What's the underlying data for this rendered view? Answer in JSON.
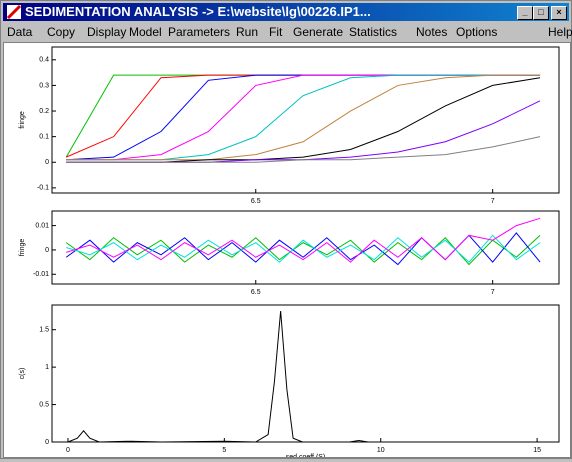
{
  "window": {
    "title": "SEDIMENTATION ANALYSIS -> E:\\website\\lg\\00226.IP1...",
    "menu": [
      "Data",
      "Copy",
      "Display",
      "Model",
      "Parameters",
      "Run",
      "Fit",
      "Generate",
      "Statistics",
      "Notes",
      "Options",
      "Help"
    ]
  },
  "chart_data": [
    {
      "type": "line",
      "ylabel": "fringe",
      "x": [
        6.1,
        6.2,
        6.3,
        6.4,
        6.5,
        6.6,
        6.7,
        6.8,
        6.9,
        7.0,
        7.1
      ],
      "series": [
        {
          "color": "#00c000",
          "values": [
            0.02,
            0.34,
            0.34,
            0.34,
            0.34,
            0.34,
            0.34,
            0.34,
            0.34,
            0.34,
            0.34
          ]
        },
        {
          "color": "#ff0000",
          "values": [
            0.02,
            0.1,
            0.33,
            0.34,
            0.34,
            0.34,
            0.34,
            0.34,
            0.34,
            0.34,
            0.34
          ]
        },
        {
          "color": "#0000ff",
          "values": [
            0.01,
            0.02,
            0.12,
            0.32,
            0.34,
            0.34,
            0.34,
            0.34,
            0.34,
            0.34,
            0.34
          ]
        },
        {
          "color": "#ff00ff",
          "values": [
            0.01,
            0.01,
            0.03,
            0.12,
            0.3,
            0.34,
            0.34,
            0.34,
            0.34,
            0.34,
            0.34
          ]
        },
        {
          "color": "#00c0c0",
          "values": [
            0.01,
            0.01,
            0.01,
            0.03,
            0.1,
            0.26,
            0.33,
            0.34,
            0.34,
            0.34,
            0.34
          ]
        },
        {
          "color": "#c08040",
          "values": [
            0.01,
            0.01,
            0.01,
            0.01,
            0.03,
            0.08,
            0.2,
            0.3,
            0.33,
            0.34,
            0.34
          ]
        },
        {
          "color": "#000000",
          "values": [
            0,
            0,
            0,
            0.01,
            0.01,
            0.02,
            0.05,
            0.12,
            0.22,
            0.3,
            0.33
          ]
        },
        {
          "color": "#8000ff",
          "values": [
            0,
            0,
            0,
            0,
            0.01,
            0.01,
            0.02,
            0.04,
            0.08,
            0.15,
            0.24
          ]
        },
        {
          "color": "#808080",
          "values": [
            0,
            0,
            0,
            0,
            0,
            0.01,
            0.01,
            0.02,
            0.03,
            0.06,
            0.1
          ]
        }
      ],
      "xlim": [
        6.07,
        7.14
      ],
      "xticks": [
        6.5,
        7
      ],
      "ylim": [
        -0.12,
        0.45
      ],
      "yticks": [
        -0.1,
        0,
        0.1,
        0.2,
        0.3,
        0.4
      ]
    },
    {
      "type": "line",
      "ylabel": "fringe",
      "x": [
        6.1,
        6.15,
        6.2,
        6.25,
        6.3,
        6.35,
        6.4,
        6.45,
        6.5,
        6.55,
        6.6,
        6.65,
        6.7,
        6.75,
        6.8,
        6.85,
        6.9,
        6.95,
        7.0,
        7.05,
        7.1
      ],
      "series": [
        {
          "color": "#00c000",
          "values": [
            0.003,
            -0.004,
            0.005,
            -0.002,
            0.004,
            -0.005,
            0.002,
            -0.003,
            0.005,
            -0.004,
            0.003,
            -0.002,
            0.004,
            -0.005,
            0.003,
            -0.004,
            0.005,
            -0.006,
            0.004,
            -0.003,
            0.006
          ]
        },
        {
          "color": "#0000ff",
          "values": [
            -0.003,
            0.004,
            -0.005,
            0.003,
            -0.002,
            0.005,
            -0.004,
            0.003,
            -0.005,
            0.004,
            -0.003,
            0.005,
            -0.004,
            0.002,
            -0.006,
            0.005,
            -0.004,
            0.006,
            -0.005,
            0.007,
            -0.005
          ]
        },
        {
          "color": "#00e0e0",
          "values": [
            0.001,
            -0.002,
            0.003,
            -0.004,
            0.002,
            -0.003,
            0.004,
            -0.002,
            0.003,
            -0.005,
            0.004,
            -0.003,
            0.002,
            -0.004,
            0.005,
            -0.003,
            0.004,
            -0.005,
            0.006,
            -0.004,
            0.003
          ]
        },
        {
          "color": "#ff00ff",
          "values": [
            -0.001,
            0.002,
            -0.003,
            0.002,
            -0.004,
            0.003,
            -0.002,
            0.004,
            -0.003,
            0.002,
            -0.004,
            0.003,
            -0.005,
            0.004,
            -0.003,
            0.005,
            -0.004,
            0.006,
            0.004,
            0.01,
            0.013
          ]
        }
      ],
      "xlim": [
        6.07,
        7.14
      ],
      "xticks": [
        6.5,
        7
      ],
      "ylim": [
        -0.014,
        0.016
      ],
      "yticks": [
        -0.01,
        0,
        0.01
      ]
    },
    {
      "type": "line",
      "xlabel": "sed coeff (S)",
      "ylabel": "c(s)",
      "x": [
        0,
        0.3,
        0.5,
        0.7,
        1,
        2,
        3,
        5,
        6,
        6.4,
        6.6,
        6.8,
        7,
        7.2,
        7.5,
        8,
        9,
        9.3,
        9.6,
        10,
        12,
        15
      ],
      "series": [
        {
          "color": "#000000",
          "values": [
            0,
            0.05,
            0.15,
            0.05,
            0,
            0.01,
            0,
            0.01,
            0,
            0.1,
            0.8,
            1.75,
            0.7,
            0.05,
            0,
            0,
            0,
            0.02,
            0,
            0,
            0,
            0
          ]
        }
      ],
      "xlim": [
        -0.51,
        15.7
      ],
      "xticks": [
        0,
        5,
        10,
        15
      ],
      "ylim": [
        0,
        1.83
      ],
      "yticks": [
        0,
        0.5,
        1,
        1.5
      ]
    }
  ]
}
